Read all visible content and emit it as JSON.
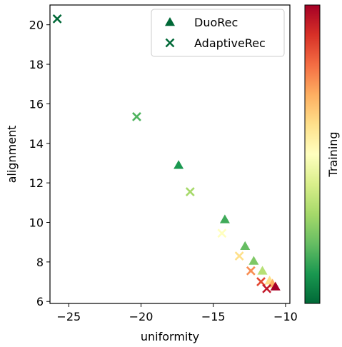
{
  "chart_data": {
    "type": "scatter",
    "title": "",
    "xlabel": "uniformity",
    "ylabel": "alignment",
    "xlim": [
      -26.3,
      -9.7
    ],
    "ylim": [
      5.9,
      21.0
    ],
    "x_ticks": [
      {
        "value": -25,
        "label": "−25"
      },
      {
        "value": -20,
        "label": "−20"
      },
      {
        "value": -15,
        "label": "−15"
      },
      {
        "value": -10,
        "label": "−10"
      }
    ],
    "y_ticks": [
      {
        "value": 6,
        "label": "6"
      },
      {
        "value": 8,
        "label": "8"
      },
      {
        "value": 10,
        "label": "10"
      },
      {
        "value": 12,
        "label": "12"
      },
      {
        "value": 14,
        "label": "14"
      },
      {
        "value": 16,
        "label": "16"
      },
      {
        "value": 18,
        "label": "18"
      },
      {
        "value": 20,
        "label": "20"
      }
    ],
    "grid": false,
    "legend": {
      "position": "top-right"
    },
    "colorbar": {
      "label": "Training",
      "colormap": [
        "#006837",
        "#1a9850",
        "#66bd63",
        "#a6d96a",
        "#d9ef8b",
        "#ffffbf",
        "#fee08b",
        "#fdae61",
        "#f46d43",
        "#d73027",
        "#a50026"
      ]
    },
    "series": [
      {
        "name": "DuoRec",
        "marker": "triangle",
        "points": [
          {
            "x": -17.4,
            "y": 12.9,
            "color": "#1a9850"
          },
          {
            "x": -14.2,
            "y": 10.15,
            "color": "#3faa59"
          },
          {
            "x": -12.8,
            "y": 8.8,
            "color": "#66bd63"
          },
          {
            "x": -12.2,
            "y": 8.05,
            "color": "#7fc866"
          },
          {
            "x": -11.6,
            "y": 7.55,
            "color": "#b7e075"
          },
          {
            "x": -11.1,
            "y": 7.05,
            "color": "#fee08b"
          },
          {
            "x": -10.9,
            "y": 6.9,
            "color": "#fdae61"
          },
          {
            "x": -10.7,
            "y": 6.75,
            "color": "#a50026"
          }
        ]
      },
      {
        "name": "AdaptiveRec",
        "marker": "x",
        "points": [
          {
            "x": -25.8,
            "y": 20.3,
            "color": "#006837"
          },
          {
            "x": -20.3,
            "y": 15.35,
            "color": "#4eb35e"
          },
          {
            "x": -16.6,
            "y": 11.55,
            "color": "#a6d96a"
          },
          {
            "x": -14.4,
            "y": 9.45,
            "color": "#ffffbf"
          },
          {
            "x": -13.2,
            "y": 8.3,
            "color": "#fee08b"
          },
          {
            "x": -12.4,
            "y": 7.55,
            "color": "#f88d52"
          },
          {
            "x": -11.7,
            "y": 7.0,
            "color": "#e44a33"
          },
          {
            "x": -11.3,
            "y": 6.65,
            "color": "#c2182a"
          }
        ]
      }
    ]
  }
}
